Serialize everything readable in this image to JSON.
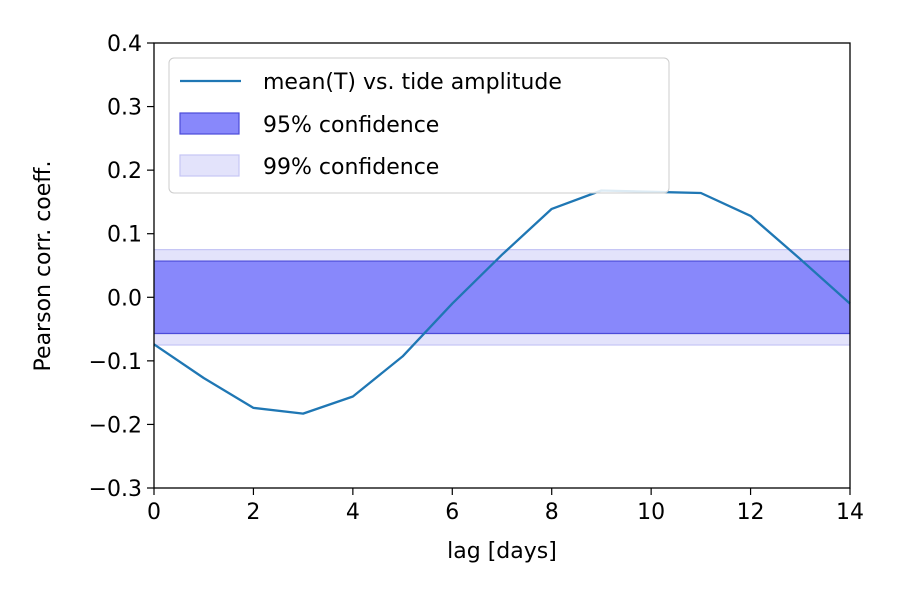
{
  "chart_data": {
    "type": "line",
    "xlabel": "lag [days]",
    "ylabel": "Pearson corr. coeff.",
    "xlim": [
      0,
      14
    ],
    "ylim": [
      -0.3,
      0.4
    ],
    "xticks": [
      0,
      2,
      4,
      6,
      8,
      10,
      12,
      14
    ],
    "xtick_labels": [
      "0",
      "2",
      "4",
      "6",
      "8",
      "10",
      "12",
      "14"
    ],
    "yticks": [
      -0.3,
      -0.2,
      -0.1,
      0.0,
      0.1,
      0.2,
      0.3,
      0.4
    ],
    "ytick_labels": [
      "−0.3",
      "−0.2",
      "−0.1",
      "0.0",
      "0.1",
      "0.2",
      "0.3",
      "0.4"
    ],
    "grid": false,
    "legend_position": "top-left",
    "series": [
      {
        "name": "mean(T) vs. tide amplitude",
        "color": "#1f77b4",
        "x": [
          0,
          1,
          2,
          3,
          4,
          5,
          6,
          7,
          8,
          9,
          10,
          11,
          12,
          13,
          14
        ],
        "y": [
          -0.074,
          -0.127,
          -0.174,
          -0.183,
          -0.156,
          -0.093,
          -0.01,
          0.067,
          0.139,
          0.168,
          0.166,
          0.164,
          0.128,
          0.06,
          -0.01
        ]
      }
    ],
    "bands": [
      {
        "name": "99% confidence",
        "lower": -0.075,
        "upper": 0.075,
        "color": "#e3e3fb",
        "edge": "#c6c6f5"
      },
      {
        "name": "95% confidence",
        "lower": -0.057,
        "upper": 0.057,
        "color": "#8888fb",
        "edge": "#4b4bd8"
      }
    ]
  }
}
